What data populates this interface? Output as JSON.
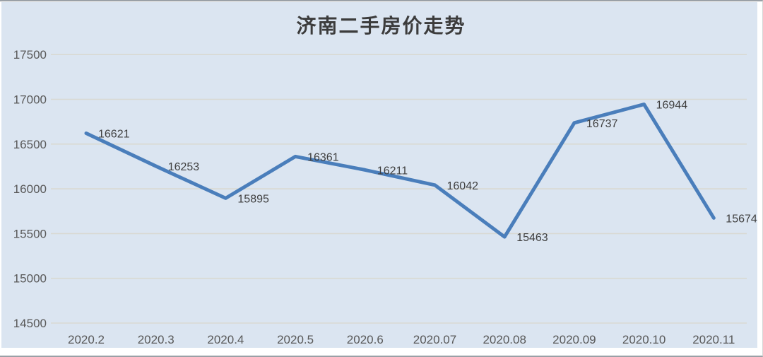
{
  "chart_data": {
    "type": "line",
    "title": "济南二手房价走势",
    "categories": [
      "2020.2",
      "2020.3",
      "2020.4",
      "2020.5",
      "2020.6",
      "2020.07",
      "2020.08",
      "2020.09",
      "2020.10",
      "2020.11"
    ],
    "values": [
      16621,
      16253,
      15895,
      16361,
      16211,
      16042,
      15463,
      16737,
      16944,
      15674
    ],
    "xlabel": "",
    "ylabel": "",
    "ylim": [
      14500,
      17500
    ],
    "ytick_step": 500,
    "grid": true,
    "legend": false,
    "data_labels": true,
    "colors": {
      "line": "#4a7ebb",
      "plot_background": "#dbe5f1",
      "gridline": "#d9d9d2",
      "axis_text": "#595959",
      "data_label_text": "#3f3f3f",
      "title_text": "#3c3c3c"
    }
  }
}
